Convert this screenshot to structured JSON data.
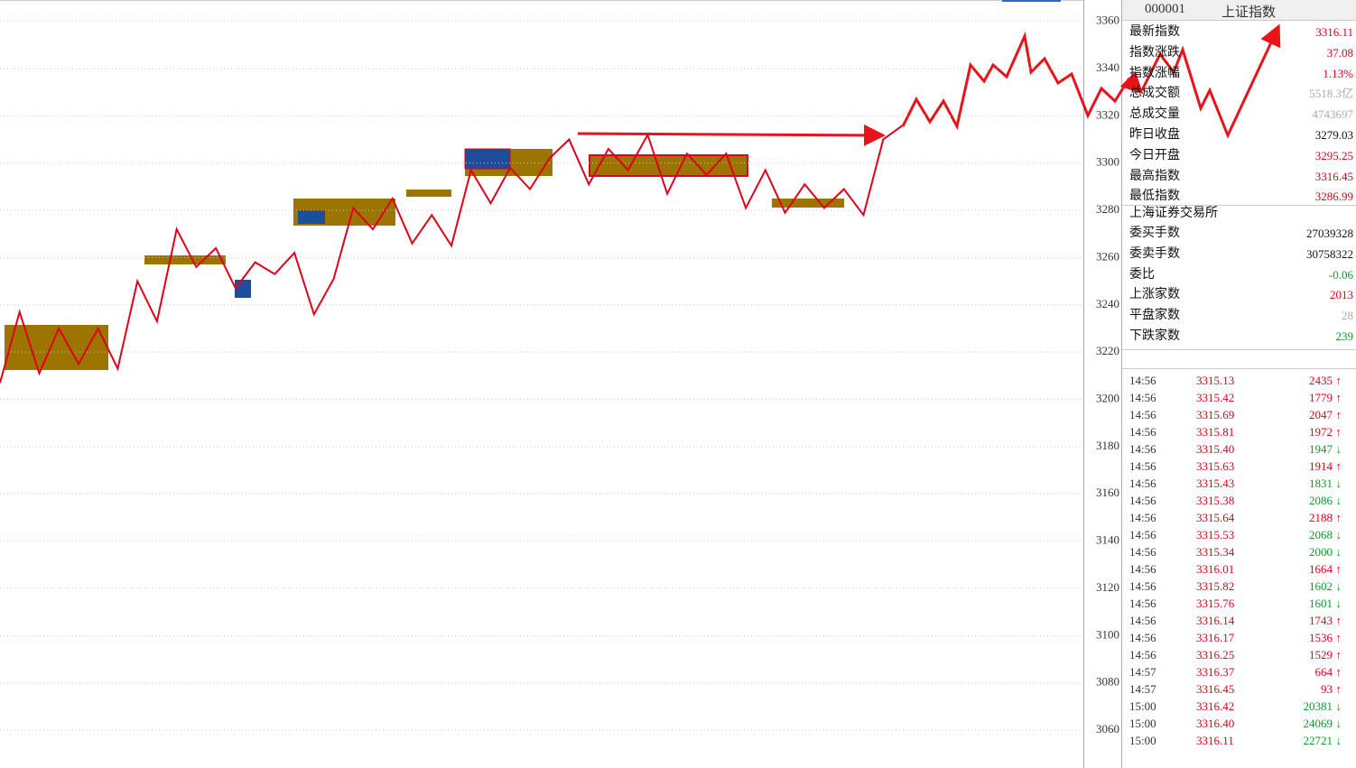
{
  "chart_data": {
    "type": "line",
    "ylim": [
      3044,
      3369
    ],
    "yticks": [
      3060,
      3080,
      3100,
      3120,
      3140,
      3160,
      3180,
      3200,
      3220,
      3240,
      3260,
      3280,
      3300,
      3320,
      3340,
      3360
    ],
    "grid": true,
    "color": "#e0001a",
    "values": [
      3207,
      3237,
      3211,
      3230,
      3215,
      3230,
      3213,
      3250,
      3233,
      3272,
      3256,
      3264,
      3247,
      3258,
      3253,
      3262,
      3236,
      3251,
      3281,
      3272,
      3285,
      3266,
      3278,
      3265,
      3297,
      3283,
      3298,
      3289,
      3302,
      3310,
      3291,
      3306,
      3297,
      3312,
      3287,
      3304,
      3295,
      3304,
      3281,
      3297,
      3279,
      3291,
      3281,
      3289,
      3278,
      3310,
      3316
    ]
  },
  "header": {
    "code": "000001",
    "name": "上证指数"
  },
  "info": [
    {
      "label": "最新指数",
      "value": "3316.11",
      "color": "#e0001a"
    },
    {
      "label": "指数涨跌",
      "value": "37.08",
      "color": "#e0001a"
    },
    {
      "label": "指数涨幅",
      "value": "1.13%",
      "color": "#e0001a"
    },
    {
      "label": "总成交额",
      "value": "5518.3亿",
      "color": "#aaaaaa"
    },
    {
      "label": "总成交量",
      "value": "4743697",
      "color": "#aaaaaa"
    },
    {
      "label": "昨日收盘",
      "value": "3279.03",
      "color": "#111111"
    },
    {
      "label": "今日开盘",
      "value": "3295.25",
      "color": "#e0001a"
    },
    {
      "label": "最高指数",
      "value": "3316.45",
      "color": "#e0001a"
    },
    {
      "label": "最低指数",
      "value": "3286.99",
      "color": "#e0001a"
    }
  ],
  "exchange": {
    "title": "上海证券交易所",
    "rows": [
      {
        "label": "委买手数",
        "value": "27039328",
        "color": "#111111"
      },
      {
        "label": "委卖手数",
        "value": "30758322",
        "color": "#111111"
      },
      {
        "label": "委比",
        "value": "-0.06",
        "color": "#0a9a2a"
      },
      {
        "label": "上涨家数",
        "value": "2013",
        "color": "#e0001a"
      },
      {
        "label": "平盘家数",
        "value": "28",
        "color": "#aaaaaa"
      },
      {
        "label": "下跌家数",
        "value": "239",
        "color": "#0a9a2a"
      }
    ]
  },
  "ticks": [
    {
      "time": "14:56",
      "price": "3315.13",
      "volume": 2435,
      "arrow": "↑",
      "color": "#e0001a"
    },
    {
      "time": "14:56",
      "price": "3315.42",
      "volume": 1779,
      "arrow": "↑",
      "color": "#e0001a"
    },
    {
      "time": "14:56",
      "price": "3315.69",
      "volume": 2047,
      "arrow": "↑",
      "color": "#e0001a"
    },
    {
      "time": "14:56",
      "price": "3315.81",
      "volume": 1972,
      "arrow": "↑",
      "color": "#e0001a"
    },
    {
      "time": "14:56",
      "price": "3315.40",
      "volume": 1947,
      "arrow": "↓",
      "color": "#0a9a2a"
    },
    {
      "time": "14:56",
      "price": "3315.63",
      "volume": 1914,
      "arrow": "↑",
      "color": "#e0001a"
    },
    {
      "time": "14:56",
      "price": "3315.43",
      "volume": 1831,
      "arrow": "↓",
      "color": "#0a9a2a"
    },
    {
      "time": "14:56",
      "price": "3315.38",
      "volume": 2086,
      "arrow": "↓",
      "color": "#0a9a2a"
    },
    {
      "time": "14:56",
      "price": "3315.64",
      "volume": 2188,
      "arrow": "↑",
      "color": "#e0001a"
    },
    {
      "time": "14:56",
      "price": "3315.53",
      "volume": 2068,
      "arrow": "↓",
      "color": "#0a9a2a"
    },
    {
      "time": "14:56",
      "price": "3315.34",
      "volume": 2000,
      "arrow": "↓",
      "color": "#0a9a2a"
    },
    {
      "time": "14:56",
      "price": "3316.01",
      "volume": 1664,
      "arrow": "↑",
      "color": "#e0001a"
    },
    {
      "time": "14:56",
      "price": "3315.82",
      "volume": 1602,
      "arrow": "↓",
      "color": "#0a9a2a"
    },
    {
      "time": "14:56",
      "price": "3315.76",
      "volume": 1601,
      "arrow": "↓",
      "color": "#0a9a2a"
    },
    {
      "time": "14:56",
      "price": "3316.14",
      "volume": 1743,
      "arrow": "↑",
      "color": "#e0001a"
    },
    {
      "time": "14:56",
      "price": "3316.17",
      "volume": 1536,
      "arrow": "↑",
      "color": "#e0001a"
    },
    {
      "time": "14:56",
      "price": "3316.25",
      "volume": 1529,
      "arrow": "↑",
      "color": "#e0001a"
    },
    {
      "time": "14:57",
      "price": "3316.37",
      "volume": 664,
      "arrow": "↑",
      "color": "#e0001a"
    },
    {
      "time": "14:57",
      "price": "3316.45",
      "volume": 93,
      "arrow": "↑",
      "color": "#e0001a"
    },
    {
      "time": "15:00",
      "price": "3316.42",
      "volume": 20381,
      "arrow": "↓",
      "color": "#0a9a2a"
    },
    {
      "time": "15:00",
      "price": "3316.40",
      "volume": 24069,
      "arrow": "↓",
      "color": "#0a9a2a"
    },
    {
      "time": "15:00",
      "price": "3316.11",
      "volume": 22721,
      "arrow": "↓",
      "color": "#0a9a2a"
    }
  ]
}
